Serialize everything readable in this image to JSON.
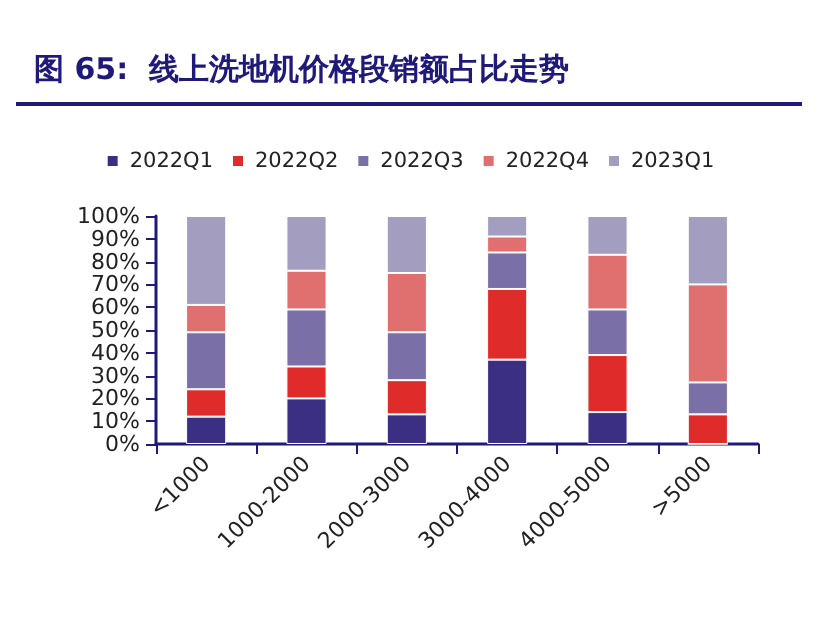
{
  "chart_data": {
    "type": "bar",
    "title": "图 65:  线上洗地机价格段销额占比走势",
    "stacked": true,
    "categories": [
      "<1000",
      "1000-2000",
      "2000-3000",
      "3000-4000",
      "4000-5000",
      ">5000"
    ],
    "series": [
      {
        "name": "2022Q1",
        "color": "#3b2f84",
        "values": [
          12,
          20,
          13,
          37,
          14,
          0
        ]
      },
      {
        "name": "2022Q2",
        "color": "#e02b2b",
        "values": [
          12,
          14,
          15,
          31,
          25,
          13
        ]
      },
      {
        "name": "2022Q3",
        "color": "#7a6fa6",
        "values": [
          25,
          25,
          21,
          16,
          20,
          14
        ]
      },
      {
        "name": "2022Q4",
        "color": "#e07070",
        "values": [
          12,
          17,
          26,
          7,
          24,
          43
        ]
      },
      {
        "name": "2023Q1",
        "color": "#a39dc0",
        "values": [
          39,
          24,
          25,
          9,
          17,
          30
        ]
      }
    ],
    "ylim": [
      0,
      100
    ],
    "yticks": [
      {
        "value": 0,
        "label": "0%"
      },
      {
        "value": 10,
        "label": "10%"
      },
      {
        "value": 20,
        "label": "20%"
      },
      {
        "value": 30,
        "label": "30%"
      },
      {
        "value": 40,
        "label": "40%"
      },
      {
        "value": 50,
        "label": "50%"
      },
      {
        "value": 60,
        "label": "60%"
      },
      {
        "value": 70,
        "label": "70%"
      },
      {
        "value": 80,
        "label": "80%"
      },
      {
        "value": 90,
        "label": "90%"
      },
      {
        "value": 100,
        "label": "100%"
      }
    ],
    "grid": false,
    "legend": "top"
  }
}
